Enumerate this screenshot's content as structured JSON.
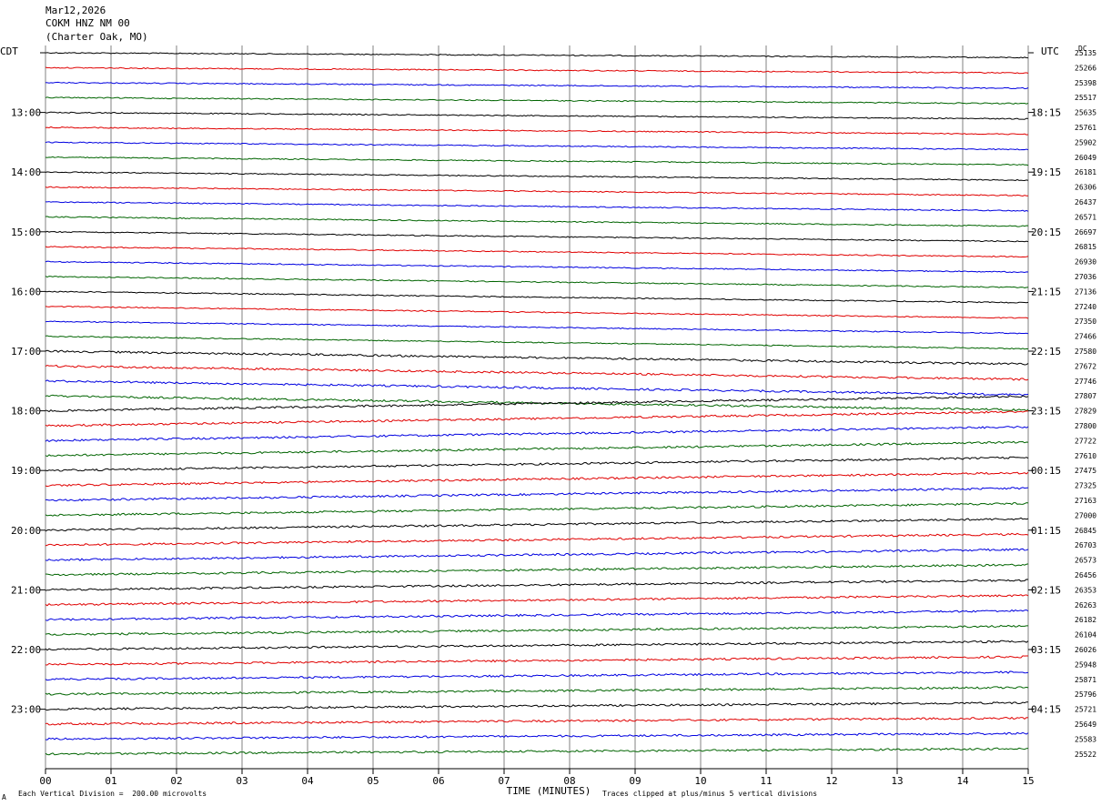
{
  "header": {
    "date": "Mar12,2026",
    "station": "COKM HNZ NM 00",
    "location": "(Charter Oak, MO)"
  },
  "left_tz": "CDT",
  "right_tz": "UTC",
  "dc_label": "DC",
  "footer": {
    "scale_note": "Each Vertical Division =  200.00 microvolts",
    "clip_note": "Traces clipped at plus/minus 5 vertical divisions",
    "corner_mark": "A"
  },
  "colors": {
    "trace_cycle": [
      "#000000",
      "#e00000",
      "#0000e0",
      "#006400"
    ],
    "grid": "#808080"
  },
  "chart_data": {
    "type": "line",
    "xlabel": "TIME (MINUTES)",
    "xlim": [
      0,
      15
    ],
    "x_ticks": [
      "00",
      "01",
      "02",
      "03",
      "04",
      "05",
      "06",
      "07",
      "08",
      "09",
      "10",
      "11",
      "12",
      "13",
      "14",
      "15"
    ],
    "left_hour_labels": [
      "13:00",
      "14:00",
      "15:00",
      "16:00",
      "17:00",
      "18:00",
      "19:00",
      "20:00",
      "21:00",
      "22:00",
      "23:00"
    ],
    "right_hour_labels": [
      "18:15",
      "19:15",
      "20:15",
      "21:15",
      "22:15",
      "23:15",
      "00:15",
      "01:15",
      "02:15",
      "03:15",
      "04:15"
    ],
    "trace_count": 48,
    "dc_offsets": [
      25135,
      25266,
      25398,
      25517,
      25635,
      25761,
      25902,
      26049,
      26181,
      26306,
      26437,
      26571,
      26697,
      26815,
      26930,
      27036,
      27136,
      27240,
      27350,
      27466,
      27580,
      27672,
      27746,
      27807,
      27829,
      27800,
      27722,
      27610,
      27475,
      27325,
      27163,
      27000,
      26845,
      26703,
      26573,
      26456,
      26353,
      26263,
      26182,
      26104,
      26026,
      25948,
      25871,
      25796,
      25721,
      25649,
      25583,
      25522
    ]
  }
}
